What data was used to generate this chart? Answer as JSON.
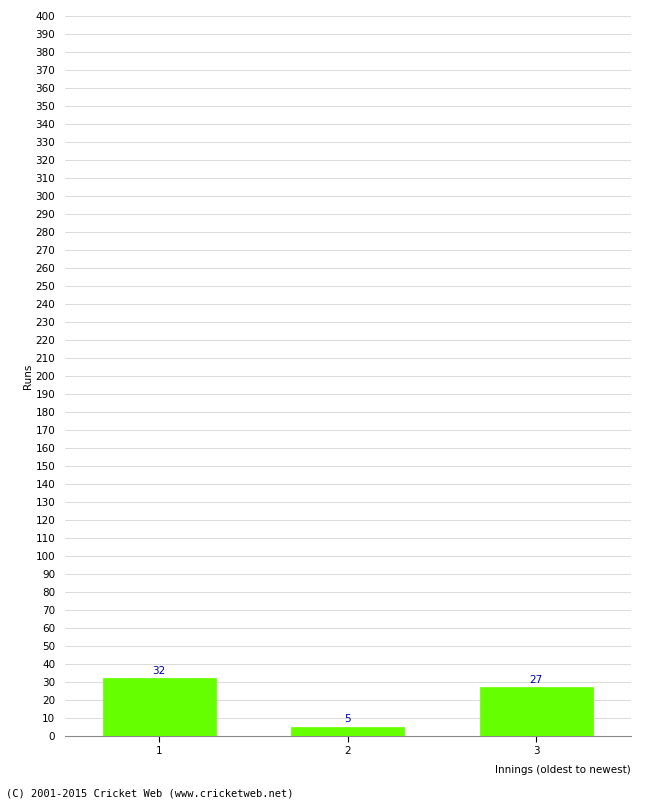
{
  "categories": [
    1,
    2,
    3
  ],
  "values": [
    32,
    5,
    27
  ],
  "bar_color": "#66ff00",
  "bar_edge_color": "#66ff00",
  "xlabel": "Innings (oldest to newest)",
  "ylabel": "Runs",
  "ylim": [
    0,
    400
  ],
  "ytick_step": 10,
  "background_color": "#ffffff",
  "grid_color": "#cccccc",
  "annotation_color": "#0000aa",
  "annotation_fontsize": 7.5,
  "ylabel_fontsize": 7.5,
  "tick_fontsize": 7.5,
  "footer": "(C) 2001-2015 Cricket Web (www.cricketweb.net)",
  "footer_fontsize": 7.5
}
